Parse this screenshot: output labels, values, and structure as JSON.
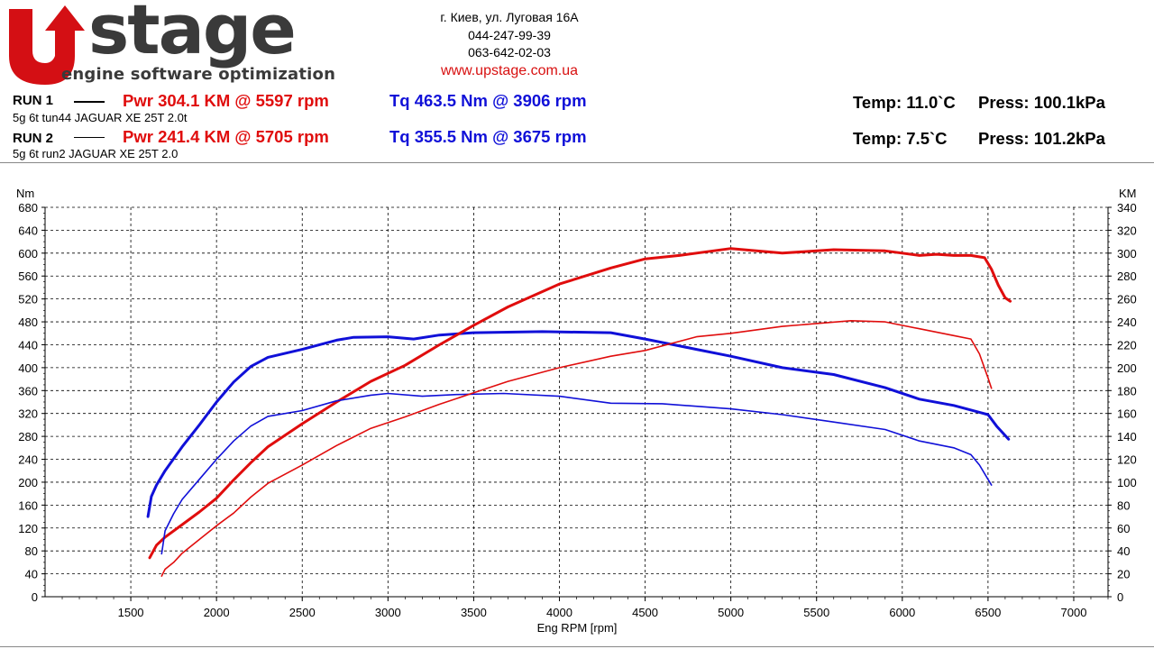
{
  "logo": {
    "text": "stage",
    "subtitle": "engine software optimization"
  },
  "contact": {
    "address": "г. Киев, ул. Луговая 16А",
    "phone1": "044-247-99-39",
    "phone2": "063-642-02-03",
    "website": "www.upstage.com.ua"
  },
  "runs": [
    {
      "label": "RUN 1",
      "power": "Pwr  304.1 KM @ 5597 rpm",
      "torque": "Tq 463.5 Nm @ 3906 rpm",
      "temp": "Temp: 11.0`C",
      "press": "Press: 100.1kPa",
      "description": "5g 6t tun44 JAGUAR XE 25T 2.0t"
    },
    {
      "label": "RUN 2",
      "power": "Pwr  241.4 KM @ 5705 rpm",
      "torque": "Tq 355.5 Nm @ 3675 rpm",
      "temp": "Temp: 7.5`C",
      "press": "Press: 101.2kPa",
      "description": "5g 6t run2 JAGUAR XE 25T 2.0"
    }
  ],
  "colors": {
    "power": "#e00d0d",
    "torque": "#1010d8",
    "logo_red": "#d40f14",
    "logo_gray": "#3a3a3a"
  },
  "chart_data": {
    "type": "line",
    "xlabel": "Eng RPM [rpm]",
    "ylabel_left": "Nm",
    "ylabel_right": "KM",
    "xlim": [
      1000,
      7200
    ],
    "ylim_left": [
      0,
      680
    ],
    "ylim_right": [
      0,
      340
    ],
    "xticks": [
      1500,
      2000,
      2500,
      3000,
      3500,
      4000,
      4500,
      5000,
      5500,
      6000,
      6500,
      7000
    ],
    "yticks_left": [
      0,
      40,
      80,
      120,
      160,
      200,
      240,
      280,
      320,
      360,
      400,
      440,
      480,
      520,
      560,
      600,
      640,
      680
    ],
    "yticks_right": [
      0,
      20,
      40,
      60,
      80,
      100,
      120,
      140,
      160,
      180,
      200,
      220,
      240,
      260,
      280,
      300,
      320,
      340
    ],
    "grid": true,
    "series": [
      {
        "axis": "left",
        "color": "#1010d8",
        "x": [
          1600,
          1620,
          1650,
          1700,
          1800,
          1900,
          2000,
          2100,
          2200,
          2300,
          2500,
          2700,
          2800,
          3000,
          3150,
          3300,
          3500,
          3900,
          4300,
          4500,
          4800,
          5000,
          5300,
          5600,
          5900,
          6100,
          6300,
          6450,
          6500,
          6550,
          6620
        ],
        "y": [
          140,
          175,
          195,
          220,
          262,
          300,
          340,
          375,
          402,
          418,
          432,
          448,
          453,
          454,
          450,
          457,
          461,
          463,
          461,
          450,
          432,
          420,
          400,
          388,
          365,
          345,
          334,
          322,
          318,
          298,
          275
        ]
      },
      {
        "axis": "right",
        "color": "#e00d0d",
        "x": [
          1610,
          1650,
          1700,
          1800,
          1900,
          2000,
          2100,
          2200,
          2300,
          2500,
          2700,
          2900,
          3100,
          3300,
          3500,
          3700,
          4000,
          4300,
          4500,
          4700,
          5000,
          5300,
          5600,
          5900,
          6100,
          6200,
          6300,
          6400,
          6480,
          6520,
          6560,
          6600,
          6630
        ],
        "y": [
          34,
          45,
          52,
          63,
          74,
          86,
          102,
          117,
          131,
          151,
          170,
          188,
          202,
          220,
          237,
          253,
          273,
          287,
          295,
          298,
          304,
          300,
          303,
          302,
          298,
          299,
          298,
          298,
          296,
          286,
          272,
          261,
          258
        ]
      },
      {
        "axis": "left",
        "color": "#1010d8",
        "x": [
          1680,
          1700,
          1750,
          1800,
          1900,
          2000,
          2100,
          2200,
          2300,
          2500,
          2700,
          2900,
          3000,
          3200,
          3400,
          3675,
          4000,
          4300,
          4600,
          5000,
          5300,
          5600,
          5900,
          6100,
          6300,
          6400,
          6450,
          6500,
          6520
        ],
        "y": [
          75,
          115,
          145,
          170,
          205,
          240,
          272,
          298,
          315,
          325,
          342,
          352,
          355,
          350,
          353,
          355,
          350,
          338,
          337,
          328,
          318,
          305,
          292,
          272,
          260,
          248,
          230,
          205,
          195
        ]
      },
      {
        "axis": "right",
        "color": "#e00d0d",
        "x": [
          1680,
          1700,
          1750,
          1800,
          1900,
          2000,
          2100,
          2200,
          2300,
          2500,
          2700,
          2900,
          3100,
          3300,
          3500,
          3700,
          4000,
          4300,
          4500,
          4800,
          5000,
          5300,
          5700,
          5900,
          6100,
          6300,
          6400,
          6450,
          6500,
          6520
        ],
        "y": [
          18,
          24,
          30,
          38,
          50,
          62,
          73,
          87,
          99,
          115,
          132,
          147,
          157,
          168,
          178,
          188,
          200,
          210,
          215,
          227,
          230,
          236,
          241,
          240,
          234,
          228,
          225,
          212,
          191,
          182
        ]
      }
    ]
  }
}
